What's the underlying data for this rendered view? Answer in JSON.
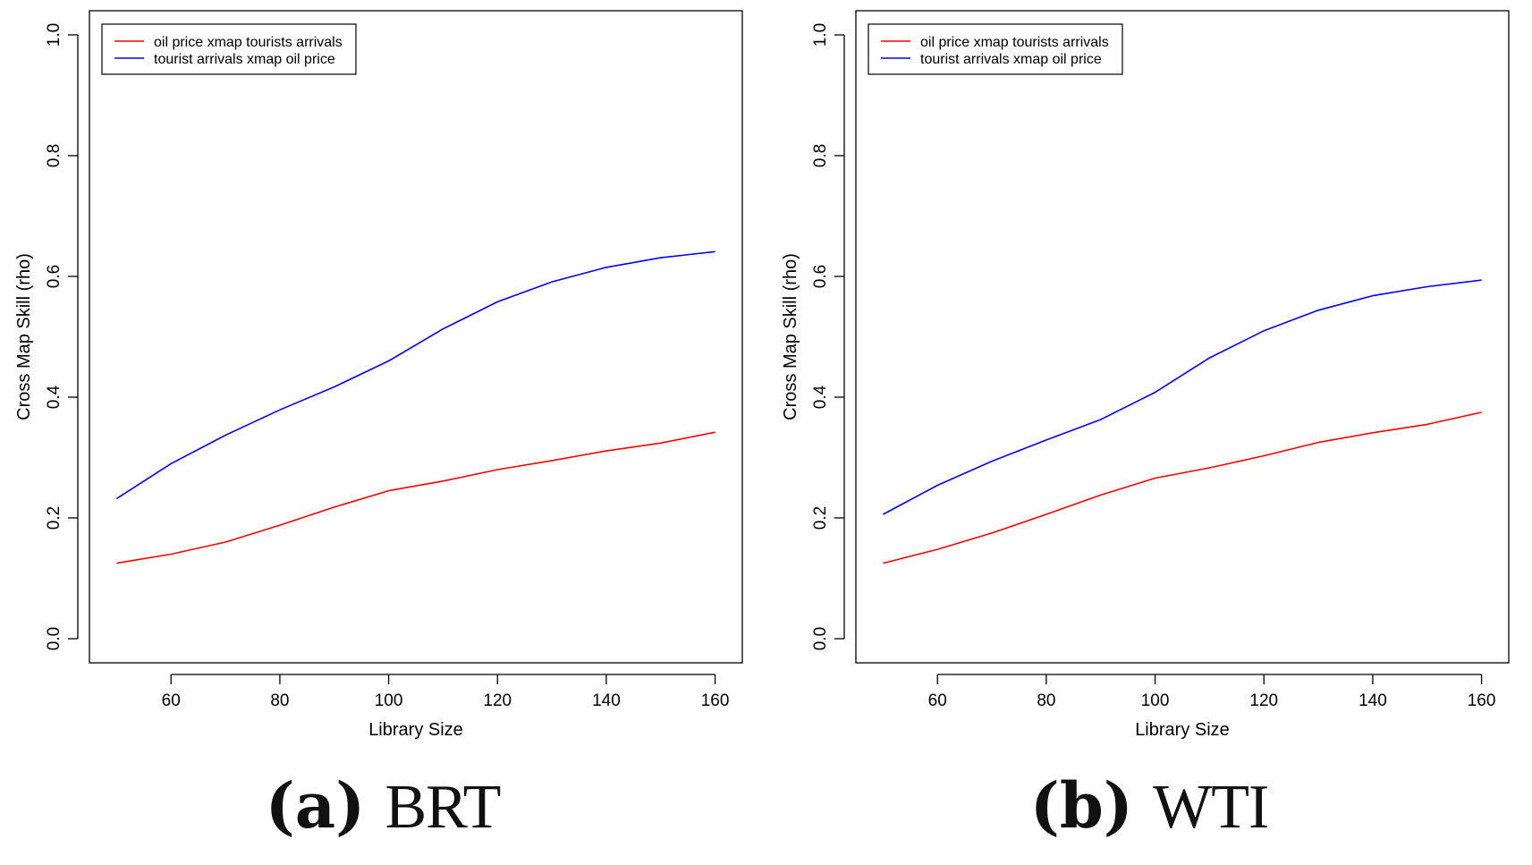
{
  "chart_data": [
    {
      "type": "line",
      "panel_label": "a",
      "panel_name": "BRT",
      "title": "",
      "xlabel": "Library Size",
      "ylabel": "Cross Map Skill (rho)",
      "xlim": [
        45,
        165
      ],
      "ylim": [
        -0.04,
        1.04
      ],
      "xticks": [
        60,
        80,
        100,
        120,
        140,
        160
      ],
      "yticks": [
        0.0,
        0.2,
        0.4,
        0.6,
        0.8,
        1.0
      ],
      "xtick_labels": [
        "60",
        "80",
        "100",
        "120",
        "140",
        "160"
      ],
      "ytick_labels": [
        "0.0",
        "0.2",
        "0.4",
        "0.6",
        "0.8",
        "1.0"
      ],
      "grid": false,
      "legend_position": "top-left",
      "x": [
        50,
        60,
        70,
        80,
        90,
        100,
        110,
        120,
        130,
        140,
        150,
        160
      ],
      "series": [
        {
          "name": "oil price xmap tourists arrivals",
          "color": "#ff0000",
          "values": [
            0.125,
            0.14,
            0.16,
            0.188,
            0.218,
            0.245,
            0.261,
            0.28,
            0.295,
            0.311,
            0.324,
            0.342
          ]
        },
        {
          "name": "tourist arrivals xmap oil price",
          "color": "#0000ff",
          "values": [
            0.232,
            0.29,
            0.337,
            0.379,
            0.417,
            0.46,
            0.513,
            0.558,
            0.591,
            0.615,
            0.631,
            0.641
          ]
        }
      ]
    },
    {
      "type": "line",
      "panel_label": "b",
      "panel_name": "WTI",
      "title": "",
      "xlabel": "Library Size",
      "ylabel": "Cross Map Skill (rho)",
      "xlim": [
        45,
        165
      ],
      "ylim": [
        -0.04,
        1.04
      ],
      "xticks": [
        60,
        80,
        100,
        120,
        140,
        160
      ],
      "yticks": [
        0.0,
        0.2,
        0.4,
        0.6,
        0.8,
        1.0
      ],
      "xtick_labels": [
        "60",
        "80",
        "100",
        "120",
        "140",
        "160"
      ],
      "ytick_labels": [
        "0.0",
        "0.2",
        "0.4",
        "0.6",
        "0.8",
        "1.0"
      ],
      "grid": false,
      "legend_position": "top-left",
      "x": [
        50,
        60,
        70,
        80,
        90,
        100,
        110,
        120,
        130,
        140,
        150,
        160
      ],
      "series": [
        {
          "name": "oil price xmap tourists arrivals",
          "color": "#ff0000",
          "values": [
            0.125,
            0.148,
            0.175,
            0.206,
            0.238,
            0.266,
            0.283,
            0.303,
            0.325,
            0.341,
            0.355,
            0.375
          ]
        },
        {
          "name": "tourist arrivals xmap oil price",
          "color": "#0000ff",
          "values": [
            0.206,
            0.254,
            0.294,
            0.329,
            0.363,
            0.408,
            0.465,
            0.51,
            0.544,
            0.568,
            0.583,
            0.594
          ]
        }
      ]
    }
  ]
}
